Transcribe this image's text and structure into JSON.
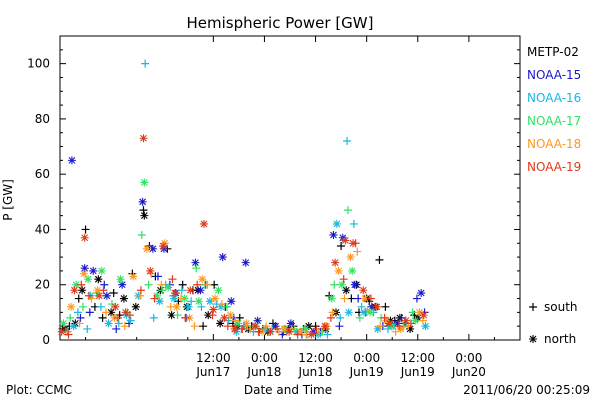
{
  "chart_data": {
    "type": "scatter",
    "title": "Hemispheric Power [GW]",
    "ylabel": "P [GW]",
    "xlabel": "Date and Time",
    "ylim": [
      0,
      110
    ],
    "yticks": [
      "0",
      "20",
      "40",
      "60",
      "80",
      "100"
    ],
    "x_unit": "hours since 2011/06/16 18:00",
    "xlim": [
      0,
      54
    ],
    "xticks": [
      {
        "x": 18,
        "time": "12:00",
        "date": "Jun17"
      },
      {
        "x": 24,
        "time": "0:00",
        "date": "Jun18"
      },
      {
        "x": 30,
        "time": "12:00",
        "date": "Jun18"
      },
      {
        "x": 36,
        "time": "0:00",
        "date": "Jun19"
      },
      {
        "x": 42,
        "time": "12:00",
        "date": "Jun19"
      },
      {
        "x": 48,
        "time": "0:00",
        "date": "Jun20"
      }
    ],
    "grid": false,
    "legend_position": "right",
    "series": [
      {
        "name": "METP-02",
        "color": "#000000",
        "south": [
          [
            0.3,
            4
          ],
          [
            1.1,
            5
          ],
          [
            2.2,
            15
          ],
          [
            3.0,
            40
          ],
          [
            4.1,
            12
          ],
          [
            5.0,
            8
          ],
          [
            6.3,
            17
          ],
          [
            7.0,
            9
          ],
          [
            8.5,
            24
          ],
          [
            9.8,
            47
          ],
          [
            10.5,
            34
          ],
          [
            11.2,
            23
          ],
          [
            12.6,
            33
          ],
          [
            13.9,
            14
          ],
          [
            14.4,
            20
          ],
          [
            15.6,
            18
          ],
          [
            16.8,
            5
          ],
          [
            18.1,
            20
          ],
          [
            19.4,
            12
          ],
          [
            20.3,
            6
          ],
          [
            21.1,
            8
          ],
          [
            22.5,
            5
          ],
          [
            23.8,
            4
          ],
          [
            25.0,
            6
          ],
          [
            26.2,
            3
          ],
          [
            27.4,
            5
          ],
          [
            28.6,
            4
          ],
          [
            30.0,
            5
          ],
          [
            31.6,
            16
          ],
          [
            33.0,
            34
          ],
          [
            34.2,
            15
          ],
          [
            35.1,
            10
          ],
          [
            36.3,
            14
          ],
          [
            37.5,
            29
          ],
          [
            38.2,
            12
          ],
          [
            39.3,
            7
          ],
          [
            40.5,
            6
          ],
          [
            41.6,
            9
          ]
        ],
        "north": [
          [
            0.6,
            4
          ],
          [
            1.8,
            6
          ],
          [
            2.6,
            18
          ],
          [
            4.5,
            22
          ],
          [
            6.0,
            10
          ],
          [
            7.5,
            15
          ],
          [
            8.9,
            12
          ],
          [
            9.9,
            45
          ],
          [
            11.8,
            18
          ],
          [
            13.1,
            9
          ],
          [
            14.9,
            12
          ],
          [
            16.2,
            18
          ],
          [
            17.4,
            9
          ],
          [
            18.8,
            6
          ],
          [
            20.8,
            5
          ],
          [
            22.1,
            4
          ],
          [
            24.4,
            3
          ],
          [
            26.8,
            4
          ],
          [
            29.2,
            5
          ],
          [
            31.2,
            4
          ],
          [
            32.4,
            10
          ],
          [
            33.6,
            18
          ],
          [
            34.8,
            20
          ],
          [
            36.0,
            15
          ],
          [
            37.0,
            12
          ],
          [
            38.8,
            7
          ],
          [
            39.9,
            8
          ],
          [
            41.1,
            4
          ],
          [
            42.0,
            8
          ]
        ]
      },
      {
        "name": "NOAA-15",
        "color": "#1a1acc",
        "south": [
          [
            2.4,
            8
          ],
          [
            3.5,
            10
          ],
          [
            5.2,
            20
          ],
          [
            6.6,
            4
          ],
          [
            8.1,
            6
          ],
          [
            11.5,
            23
          ],
          [
            12.9,
            20
          ],
          [
            14.8,
            8
          ],
          [
            17.1,
            20
          ],
          [
            20.4,
            8
          ],
          [
            21.6,
            5
          ],
          [
            23.4,
            3
          ],
          [
            26.1,
            2
          ],
          [
            28.4,
            2
          ],
          [
            30.6,
            3
          ],
          [
            32.8,
            5
          ],
          [
            35.0,
            15
          ],
          [
            35.9,
            10
          ],
          [
            37.9,
            5
          ],
          [
            40.1,
            8
          ],
          [
            41.9,
            15
          ],
          [
            42.8,
            10
          ]
        ],
        "north": [
          [
            1.4,
            65
          ],
          [
            2.9,
            26
          ],
          [
            3.9,
            25
          ],
          [
            5.5,
            16
          ],
          [
            7.3,
            20
          ],
          [
            9.7,
            50
          ],
          [
            10.9,
            33
          ],
          [
            12.2,
            33
          ],
          [
            13.6,
            17
          ],
          [
            15.9,
            28
          ],
          [
            16.5,
            18
          ],
          [
            19.1,
            30
          ],
          [
            20.1,
            14
          ],
          [
            21.8,
            28
          ],
          [
            23.2,
            7
          ],
          [
            25.3,
            5
          ],
          [
            27.1,
            6
          ],
          [
            29.8,
            3
          ],
          [
            32.1,
            38
          ],
          [
            33.2,
            37
          ],
          [
            34.6,
            20
          ],
          [
            36.6,
            12
          ],
          [
            38.6,
            6
          ],
          [
            39.6,
            6
          ],
          [
            42.4,
            17
          ]
        ]
      },
      {
        "name": "NOAA-16",
        "color": "#18b8e0",
        "south": [
          [
            0.9,
            3
          ],
          [
            2.1,
            10
          ],
          [
            3.2,
            4
          ],
          [
            4.8,
            12
          ],
          [
            6.9,
            6
          ],
          [
            8.3,
            7
          ],
          [
            10.0,
            100
          ],
          [
            11.0,
            8
          ],
          [
            12.4,
            20
          ],
          [
            13.3,
            16
          ],
          [
            14.3,
            18
          ],
          [
            15.4,
            14
          ],
          [
            16.6,
            12
          ],
          [
            18.4,
            13
          ],
          [
            19.8,
            7
          ],
          [
            21.3,
            4
          ],
          [
            22.7,
            3
          ],
          [
            24.9,
            4
          ],
          [
            26.6,
            3
          ],
          [
            29.0,
            2
          ],
          [
            31.4,
            2
          ],
          [
            32.9,
            8
          ],
          [
            33.7,
            72
          ],
          [
            34.5,
            42
          ],
          [
            35.4,
            12
          ],
          [
            36.8,
            10
          ],
          [
            38.5,
            4
          ],
          [
            40.7,
            6
          ]
        ],
        "north": [
          [
            1.6,
            5
          ],
          [
            3.6,
            16
          ],
          [
            5.7,
            6
          ],
          [
            7.8,
            9
          ],
          [
            9.2,
            16
          ],
          [
            11.7,
            14
          ],
          [
            13.4,
            15
          ],
          [
            15.1,
            12
          ],
          [
            17.6,
            14
          ],
          [
            18.9,
            12
          ],
          [
            20.7,
            3
          ],
          [
            24.1,
            4
          ],
          [
            27.8,
            3
          ],
          [
            30.3,
            2
          ],
          [
            32.5,
            42
          ],
          [
            33.9,
            10
          ],
          [
            35.7,
            10
          ],
          [
            37.3,
            4
          ],
          [
            39.1,
            5
          ],
          [
            42.9,
            5
          ]
        ]
      },
      {
        "name": "NOAA-17",
        "color": "#33e066",
        "south": [
          [
            1.2,
            8
          ],
          [
            2.7,
            12
          ],
          [
            4.3,
            17
          ],
          [
            6.1,
            13
          ],
          [
            7.9,
            10
          ],
          [
            9.6,
            38
          ],
          [
            10.4,
            20
          ],
          [
            12.0,
            18
          ],
          [
            13.8,
            9
          ],
          [
            16.0,
            26
          ],
          [
            17.0,
            20
          ],
          [
            19.6,
            12
          ],
          [
            22.0,
            5
          ],
          [
            24.6,
            3
          ],
          [
            27.5,
            4
          ],
          [
            30.8,
            3
          ],
          [
            32.2,
            20
          ],
          [
            33.8,
            47
          ],
          [
            35.2,
            8
          ],
          [
            37.7,
            8
          ],
          [
            40.3,
            5
          ],
          [
            41.4,
            10
          ]
        ],
        "north": [
          [
            0.4,
            6
          ],
          [
            1.9,
            20
          ],
          [
            3.3,
            22
          ],
          [
            4.9,
            25
          ],
          [
            7.1,
            22
          ],
          [
            9.9,
            57
          ],
          [
            11.4,
            16
          ],
          [
            12.7,
            19
          ],
          [
            14.6,
            15
          ],
          [
            16.3,
            14
          ],
          [
            18.6,
            18
          ],
          [
            20.9,
            6
          ],
          [
            23.0,
            5
          ],
          [
            26.3,
            4
          ],
          [
            28.8,
            4
          ],
          [
            31.9,
            15
          ],
          [
            33.1,
            20
          ],
          [
            34.3,
            25
          ],
          [
            36.4,
            10
          ],
          [
            38.9,
            5
          ],
          [
            41.7,
            7
          ]
        ]
      },
      {
        "name": "NOAA-18",
        "color": "#ff9922",
        "south": [
          [
            0.7,
            3
          ],
          [
            2.3,
            6
          ],
          [
            3.7,
            15
          ],
          [
            5.4,
            10
          ],
          [
            7.6,
            5
          ],
          [
            9.4,
            16
          ],
          [
            10.7,
            24
          ],
          [
            11.9,
            20
          ],
          [
            13.0,
            12
          ],
          [
            14.2,
            15
          ],
          [
            15.8,
            5
          ],
          [
            17.3,
            20
          ],
          [
            19.0,
            13
          ],
          [
            20.6,
            7
          ],
          [
            22.3,
            4
          ],
          [
            24.2,
            5
          ],
          [
            25.7,
            3
          ],
          [
            27.2,
            4
          ],
          [
            28.9,
            2
          ],
          [
            30.4,
            3
          ],
          [
            32.0,
            10
          ],
          [
            33.4,
            15
          ],
          [
            34.9,
            32
          ],
          [
            36.1,
            11
          ],
          [
            37.6,
            5
          ],
          [
            39.4,
            3
          ],
          [
            40.9,
            5
          ],
          [
            42.6,
            7
          ]
        ],
        "north": [
          [
            1.3,
            12
          ],
          [
            2.8,
            24
          ],
          [
            4.4,
            18
          ],
          [
            6.4,
            8
          ],
          [
            8.6,
            23
          ],
          [
            10.2,
            33
          ],
          [
            12.3,
            35
          ],
          [
            13.7,
            12
          ],
          [
            15.2,
            8
          ],
          [
            16.7,
            22
          ],
          [
            18.2,
            15
          ],
          [
            20.0,
            9
          ],
          [
            21.9,
            6
          ],
          [
            23.7,
            3
          ],
          [
            26.4,
            4
          ],
          [
            28.2,
            3
          ],
          [
            31.3,
            5
          ],
          [
            32.7,
            25
          ],
          [
            34.1,
            30
          ],
          [
            35.8,
            15
          ],
          [
            38.3,
            7
          ],
          [
            40.0,
            4
          ],
          [
            42.2,
            10
          ]
        ]
      },
      {
        "name": "NOAA-19",
        "color": "#e03a1a",
        "south": [
          [
            1.0,
            2
          ],
          [
            2.5,
            20
          ],
          [
            3.4,
            16
          ],
          [
            5.1,
            18
          ],
          [
            6.8,
            8
          ],
          [
            8.2,
            9
          ],
          [
            9.5,
            18
          ],
          [
            11.1,
            15
          ],
          [
            13.2,
            22
          ],
          [
            14.7,
            8
          ],
          [
            16.1,
            20
          ],
          [
            17.9,
            9
          ],
          [
            19.7,
            5
          ],
          [
            21.4,
            4
          ],
          [
            23.3,
            3
          ],
          [
            25.5,
            4
          ],
          [
            27.9,
            2
          ],
          [
            30.1,
            4
          ],
          [
            31.8,
            8
          ],
          [
            33.3,
            22
          ],
          [
            34.7,
            35
          ],
          [
            36.5,
            15
          ],
          [
            38.1,
            8
          ],
          [
            39.8,
            5
          ],
          [
            41.2,
            6
          ]
        ],
        "north": [
          [
            0.2,
            3
          ],
          [
            1.7,
            18
          ],
          [
            2.9,
            37
          ],
          [
            4.6,
            16
          ],
          [
            6.5,
            12
          ],
          [
            7.7,
            10
          ],
          [
            9.8,
            73
          ],
          [
            10.6,
            25
          ],
          [
            12.1,
            34
          ],
          [
            13.5,
            17
          ],
          [
            15.3,
            18
          ],
          [
            16.9,
            42
          ],
          [
            18.0,
            11
          ],
          [
            19.3,
            8
          ],
          [
            20.5,
            4
          ],
          [
            22.9,
            5
          ],
          [
            24.7,
            3
          ],
          [
            26.9,
            3
          ],
          [
            29.5,
            2
          ],
          [
            31.1,
            5
          ],
          [
            32.3,
            28
          ],
          [
            33.5,
            36
          ],
          [
            34.4,
            35
          ],
          [
            35.6,
            18
          ],
          [
            37.2,
            12
          ],
          [
            38.7,
            6
          ],
          [
            40.6,
            7
          ],
          [
            42.7,
            9
          ]
        ]
      }
    ],
    "symbol_legend": {
      "south": "south",
      "north": "north"
    }
  },
  "footer": {
    "plot_credit": "Plot: CCMC",
    "timestamp": "2011/06/20 00:25:09"
  }
}
